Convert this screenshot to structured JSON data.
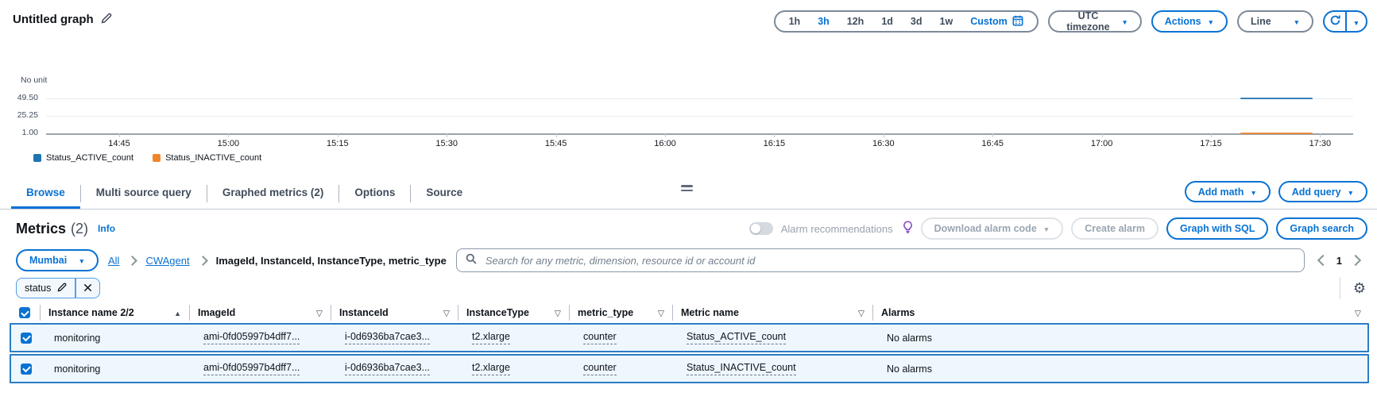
{
  "window": {
    "title": "Untitled graph"
  },
  "toolbar": {
    "time_ranges": [
      "1h",
      "3h",
      "12h",
      "1d",
      "3d",
      "1w"
    ],
    "selected_range": "3h",
    "custom_label": "Custom",
    "timezone_label": "UTC timezone",
    "actions_label": "Actions",
    "chart_type_label": "Line"
  },
  "chart_data": {
    "type": "line",
    "unit_label": "No unit",
    "ylim": [
      1.0,
      49.5
    ],
    "y_ticks": [
      "49.50",
      "25.25",
      "1.00"
    ],
    "x_ticks": [
      "14:45",
      "15:00",
      "15:15",
      "15:30",
      "15:45",
      "16:00",
      "16:15",
      "16:30",
      "16:45",
      "17:00",
      "17:15",
      "17:30"
    ],
    "grid": true,
    "legend_position": "bottom",
    "series": [
      {
        "name": "Status_ACTIVE_count",
        "color": "#2074b2",
        "value": 49.5,
        "start": "17:19",
        "end": "17:29"
      },
      {
        "name": "Status_INACTIVE_count",
        "color": "#f0862c",
        "value": 1.0,
        "start": "17:19",
        "end": "17:29"
      }
    ]
  },
  "tabs": {
    "items": [
      "Browse",
      "Multi source query",
      "Graphed metrics (2)",
      "Options",
      "Source"
    ],
    "active": "Browse",
    "add_math_label": "Add math",
    "add_query_label": "Add query"
  },
  "metrics_panel": {
    "title": "Metrics",
    "count": "(2)",
    "info_label": "Info",
    "alarm_recommendations_label": "Alarm recommendations",
    "download_alarm_code_label": "Download alarm code",
    "create_alarm_label": "Create alarm",
    "graph_with_sql_label": "Graph with SQL",
    "graph_search_label": "Graph search"
  },
  "filter_bar": {
    "region": "Mumbai",
    "breadcrumbs": [
      "All",
      "CWAgent"
    ],
    "dimension_path": "ImageId, InstanceId, InstanceType, metric_type",
    "search_placeholder": "Search for any metric, dimension, resource id or account id",
    "page": "1",
    "filter_chip": "status"
  },
  "table": {
    "columns": [
      {
        "label": "Instance name 2/2",
        "sort": "asc"
      },
      {
        "label": "ImageId",
        "filter": true
      },
      {
        "label": "InstanceId",
        "filter": true
      },
      {
        "label": "InstanceType",
        "filter": true
      },
      {
        "label": "metric_type",
        "filter": true
      },
      {
        "label": "Metric name",
        "filter": true
      },
      {
        "label": "Alarms",
        "filter": true
      }
    ],
    "rows": [
      {
        "selected": true,
        "cells": [
          {
            "text": "monitoring"
          },
          {
            "text": "ami-0fd05997b4dff7...",
            "dashed": true
          },
          {
            "text": "i-0d6936ba7cae3...",
            "dashed": true
          },
          {
            "text": "t2.xlarge",
            "dashed": true
          },
          {
            "text": "counter",
            "dashed": true
          },
          {
            "text": "Status_ACTIVE_count",
            "dashed": true
          },
          {
            "text": "No alarms"
          }
        ]
      },
      {
        "selected": true,
        "cells": [
          {
            "text": "monitoring"
          },
          {
            "text": "ami-0fd05997b4dff7...",
            "dashed": true
          },
          {
            "text": "i-0d6936ba7cae3...",
            "dashed": true
          },
          {
            "text": "t2.xlarge",
            "dashed": true
          },
          {
            "text": "counter",
            "dashed": true
          },
          {
            "text": "Status_INACTIVE_count",
            "dashed": true
          },
          {
            "text": "No alarms"
          }
        ]
      }
    ]
  }
}
